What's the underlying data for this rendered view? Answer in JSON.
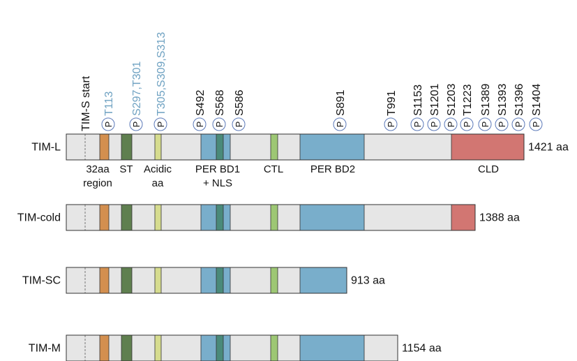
{
  "tim_s_start": "TIM-S start",
  "phosphosites": [
    {
      "label": "T113",
      "color": "#6fa2c2"
    },
    {
      "label": "S297,T301",
      "color": "#6fa2c2"
    },
    {
      "label": "T305,S309,S313",
      "color": "#6fa2c2"
    },
    {
      "label": "S492",
      "color": "#111111"
    },
    {
      "label": "S568",
      "color": "#111111"
    },
    {
      "label": "S586",
      "color": "#111111"
    },
    {
      "label": "S891",
      "color": "#111111"
    },
    {
      "label": "T991",
      "color": "#111111"
    },
    {
      "label": "S1153",
      "color": "#111111"
    },
    {
      "label": "S1201",
      "color": "#111111"
    },
    {
      "label": "S1203",
      "color": "#111111"
    },
    {
      "label": "T1223",
      "color": "#111111"
    },
    {
      "label": "S1389",
      "color": "#111111"
    },
    {
      "label": "S1393",
      "color": "#111111"
    },
    {
      "label": "S1396",
      "color": "#111111"
    },
    {
      "label": "S1404",
      "color": "#111111"
    }
  ],
  "phospho_symbol": "P",
  "domain_labels": [
    {
      "lines": [
        "32aa",
        "region"
      ]
    },
    {
      "lines": [
        "ST"
      ]
    },
    {
      "lines": [
        "Acidic",
        "aa"
      ]
    },
    {
      "lines": [
        "PER BD1",
        "+ NLS"
      ]
    },
    {
      "lines": [
        "CTL"
      ]
    },
    {
      "lines": [
        "PER BD2"
      ]
    },
    {
      "lines": [
        "CLD"
      ]
    }
  ],
  "isoforms": [
    {
      "name": "TIM-L",
      "length": "1421 aa"
    },
    {
      "name": "TIM-cold",
      "length": "1388 aa"
    },
    {
      "name": "TIM-SC",
      "length": "913 aa"
    },
    {
      "name": "TIM-M",
      "length": "1154 aa"
    }
  ]
}
